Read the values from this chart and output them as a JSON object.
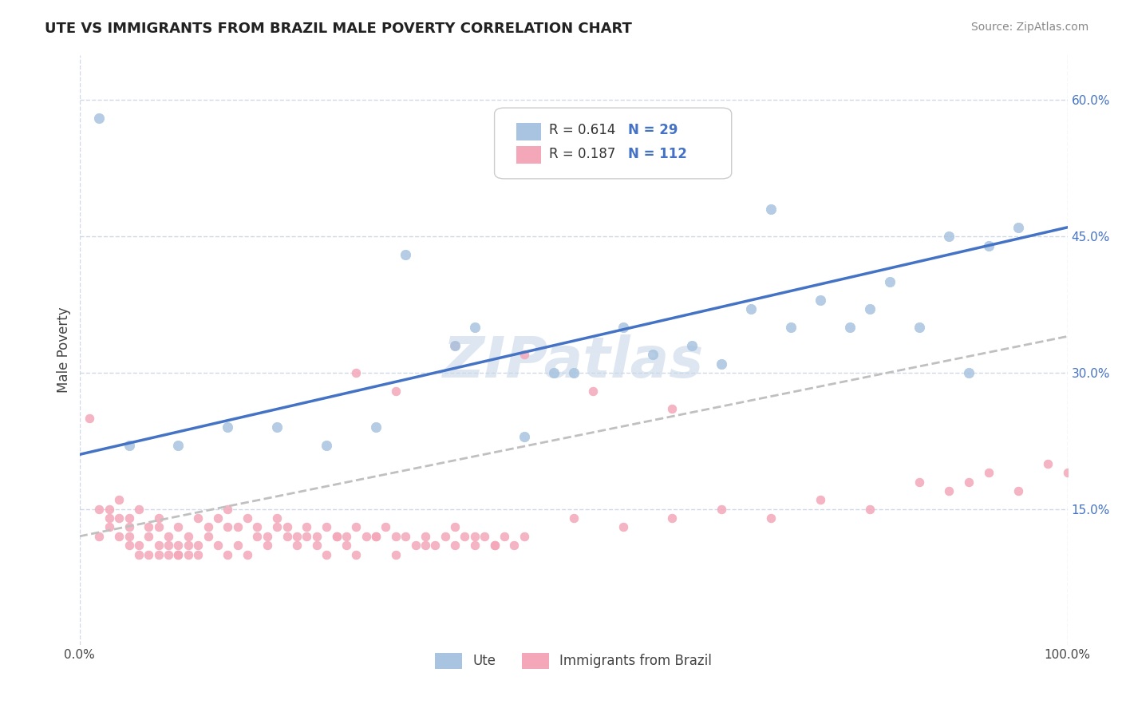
{
  "title": "UTE VS IMMIGRANTS FROM BRAZIL MALE POVERTY CORRELATION CHART",
  "source_text": "Source: ZipAtlas.com",
  "xlabel": "",
  "ylabel": "Male Poverty",
  "watermark": "ZIPatlas",
  "legend_r1": "R = 0.614",
  "legend_n1": "N = 29",
  "legend_r2": "R = 0.187",
  "legend_n2": "N = 112",
  "series1_name": "Ute",
  "series2_name": "Immigrants from Brazil",
  "color1": "#a8c4e0",
  "color2": "#f4a7b9",
  "trendline1_color": "#4472c4",
  "trendline2_color": "#c0c0c0",
  "background_color": "#ffffff",
  "grid_color": "#d0d8e8",
  "xlim": [
    0,
    100
  ],
  "ylim": [
    0,
    65
  ],
  "ytick_positions": [
    15,
    30,
    45,
    60
  ],
  "ytick_labels": [
    "15.0%",
    "30.0%",
    "45.0%",
    "60.0%"
  ],
  "xtick_positions": [
    0,
    100
  ],
  "xtick_labels": [
    "0.0%",
    "100.0%"
  ],
  "ute_x": [
    2,
    15,
    33,
    55,
    62,
    70,
    80,
    88,
    95,
    40,
    65,
    75,
    50,
    20,
    85,
    92,
    30,
    10,
    48,
    72,
    5,
    25,
    45,
    58,
    78,
    82,
    68,
    38,
    90
  ],
  "ute_y": [
    58,
    24,
    43,
    35,
    33,
    48,
    37,
    45,
    46,
    35,
    31,
    38,
    30,
    24,
    35,
    44,
    24,
    22,
    30,
    35,
    22,
    22,
    23,
    32,
    35,
    40,
    37,
    33,
    30
  ],
  "brazil_x": [
    1,
    2,
    3,
    3,
    4,
    4,
    5,
    5,
    5,
    6,
    6,
    7,
    7,
    8,
    8,
    8,
    9,
    9,
    10,
    10,
    10,
    11,
    11,
    12,
    12,
    13,
    14,
    15,
    15,
    16,
    17,
    18,
    19,
    20,
    21,
    22,
    23,
    24,
    25,
    26,
    27,
    28,
    30,
    32,
    35,
    38,
    40,
    42,
    2,
    3,
    4,
    5,
    6,
    7,
    8,
    9,
    10,
    11,
    12,
    13,
    14,
    15,
    16,
    17,
    18,
    19,
    20,
    21,
    22,
    23,
    24,
    25,
    26,
    27,
    28,
    29,
    30,
    31,
    32,
    33,
    34,
    35,
    36,
    37,
    38,
    39,
    40,
    41,
    42,
    43,
    44,
    45,
    50,
    55,
    60,
    65,
    70,
    75,
    80,
    85,
    88,
    90,
    92,
    95,
    98,
    100,
    28,
    32,
    38,
    45,
    52,
    60
  ],
  "brazil_y": [
    25,
    12,
    13,
    15,
    12,
    14,
    11,
    13,
    12,
    11,
    10,
    12,
    10,
    11,
    10,
    13,
    11,
    10,
    10,
    11,
    10,
    10,
    11,
    10,
    11,
    12,
    11,
    10,
    13,
    11,
    10,
    12,
    11,
    13,
    12,
    11,
    12,
    11,
    10,
    12,
    11,
    10,
    12,
    10,
    11,
    13,
    12,
    11,
    15,
    14,
    16,
    14,
    15,
    13,
    14,
    12,
    13,
    12,
    14,
    13,
    14,
    15,
    13,
    14,
    13,
    12,
    14,
    13,
    12,
    13,
    12,
    13,
    12,
    12,
    13,
    12,
    12,
    13,
    12,
    12,
    11,
    12,
    11,
    12,
    11,
    12,
    11,
    12,
    11,
    12,
    11,
    12,
    14,
    13,
    14,
    15,
    14,
    16,
    15,
    18,
    17,
    18,
    19,
    17,
    20,
    19,
    30,
    28,
    33,
    32,
    28,
    26
  ],
  "trendline1_x": [
    0,
    100
  ],
  "trendline1_y": [
    21,
    46
  ],
  "trendline2_x": [
    0,
    100
  ],
  "trendline2_y": [
    12,
    34
  ]
}
